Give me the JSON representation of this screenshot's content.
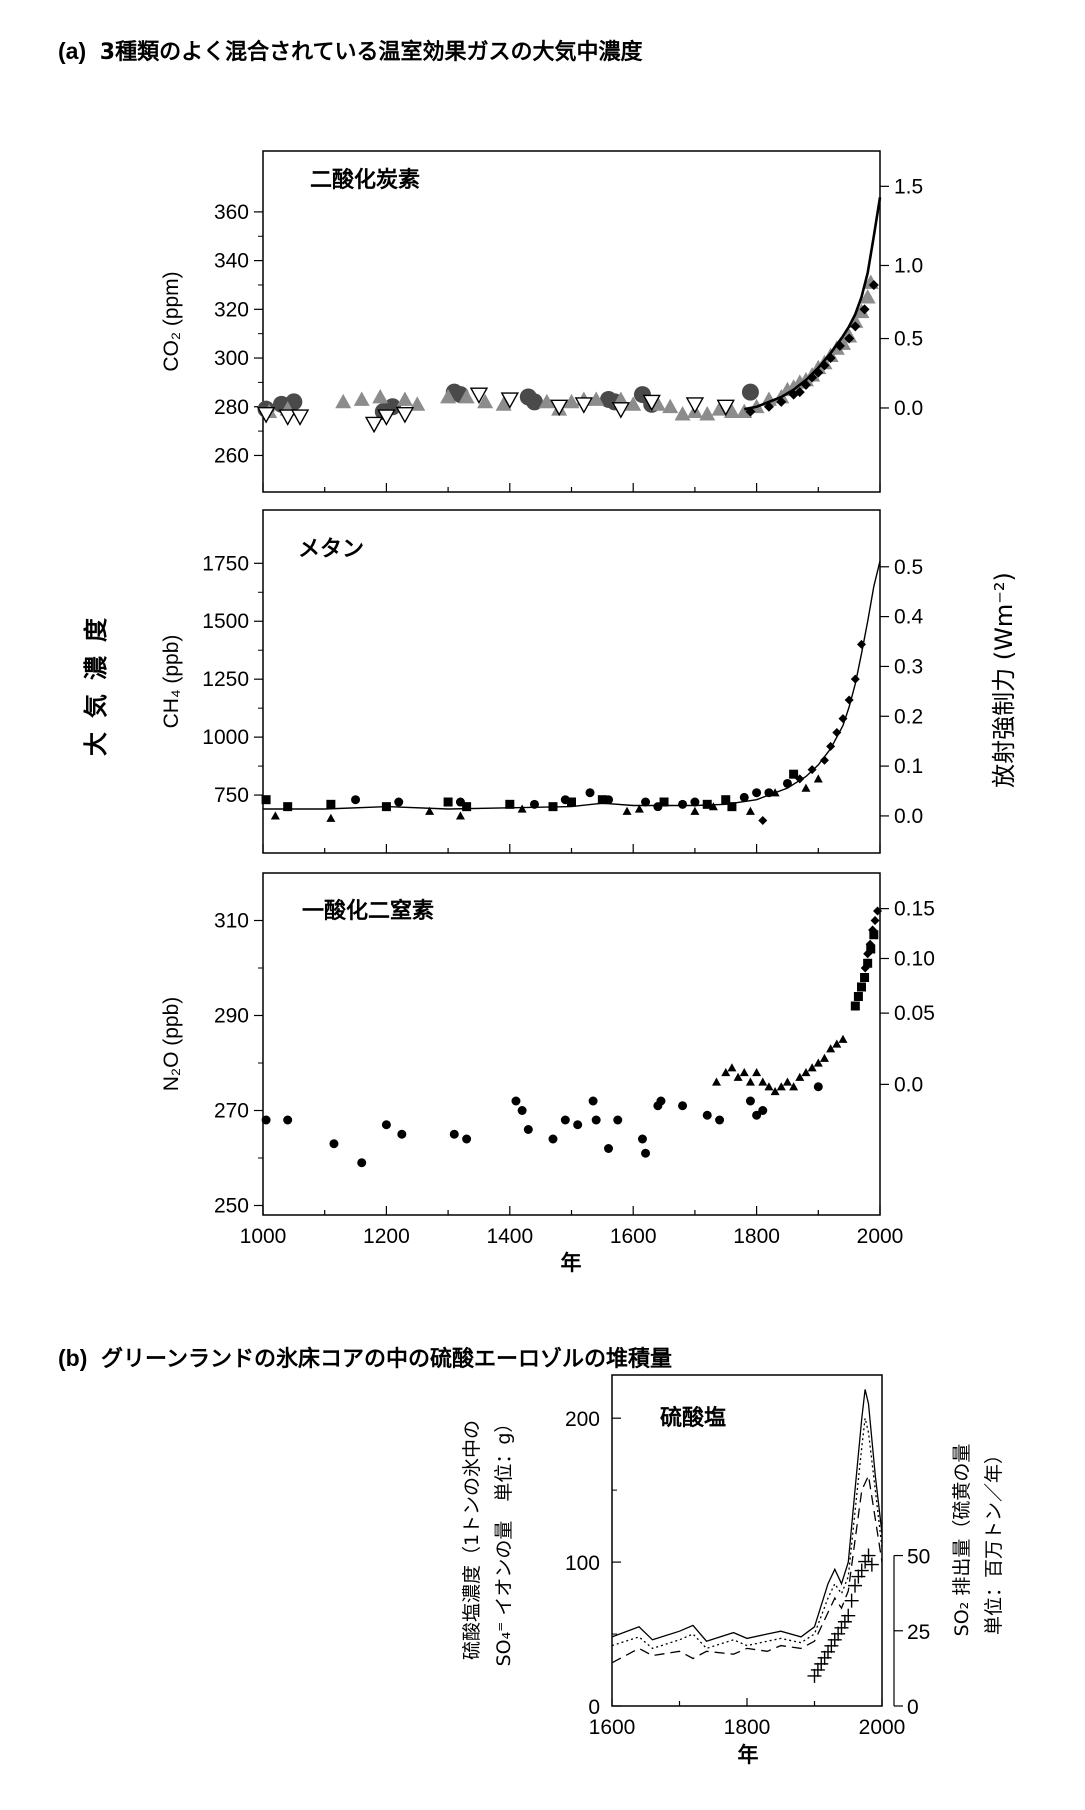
{
  "header_a": {
    "tag": "(a)",
    "text": "3種類のよく混合されている温室効果ガスの大気中濃度"
  },
  "header_b": {
    "tag": "(b)",
    "text": "グリーンランドの氷床コアの中の硫酸エーロゾルの堆積量"
  },
  "left_group_label": "大気濃度",
  "right_group_label": "放射強制力 (Wm⁻²)",
  "shared_xlabel": "年",
  "chart_data": [
    {
      "id": "co2",
      "type": "scatter",
      "title": "二酸化炭素",
      "ylabel": "CO₂ (ppm)",
      "xlim": [
        1000,
        2000
      ],
      "ylim": [
        245,
        385
      ],
      "yticks": [
        260,
        280,
        300,
        320,
        340,
        360
      ],
      "y2label_values": [
        "1.5",
        "1.0",
        "0.5",
        "0.0"
      ],
      "y2ticks_at": [
        370.5,
        338,
        308,
        279.5
      ],
      "colors": {
        "circle": "#4a4a4a",
        "triangle": "#8c8c8c",
        "tri_down": "#000000",
        "diamond": "#000000"
      },
      "series": [
        {
          "marker": "circle",
          "x": [
            1005,
            1030,
            1050,
            1195,
            1210,
            1310,
            1320,
            1430,
            1440,
            1560,
            1570,
            1615,
            1630,
            1790
          ],
          "y": [
            279,
            281,
            282,
            278,
            280,
            286,
            285,
            284,
            282,
            283,
            282,
            285,
            281,
            286
          ]
        },
        {
          "marker": "triangle",
          "x": [
            1010,
            1040,
            1130,
            1160,
            1190,
            1230,
            1250,
            1300,
            1330,
            1360,
            1390,
            1460,
            1480,
            1500,
            1520,
            1540,
            1580,
            1600,
            1640,
            1660,
            1680,
            1700,
            1720,
            1740,
            1760,
            1780,
            1800,
            1820,
            1840,
            1850,
            1860,
            1870,
            1880,
            1890,
            1900,
            1910,
            1920,
            1930,
            1940,
            1950,
            1960,
            1970,
            1980,
            1985
          ],
          "y": [
            278,
            279,
            282,
            283,
            284,
            283,
            281,
            284,
            284,
            282,
            281,
            282,
            279,
            282,
            283,
            283,
            283,
            281,
            281,
            280,
            277,
            278,
            277,
            279,
            278,
            278,
            280,
            283,
            284,
            287,
            288,
            290,
            291,
            293,
            296,
            298,
            301,
            304,
            306,
            309,
            315,
            319,
            325,
            331
          ]
        },
        {
          "marker": "tri_down",
          "x": [
            1005,
            1040,
            1060,
            1180,
            1200,
            1230,
            1350,
            1400,
            1480,
            1520,
            1580,
            1630,
            1700,
            1750
          ],
          "y": [
            277,
            276,
            276,
            273,
            276,
            277,
            285,
            283,
            280,
            281,
            279,
            282,
            281,
            280
          ]
        },
        {
          "marker": "diamond",
          "x": [
            1790,
            1820,
            1840,
            1860,
            1870,
            1880,
            1890,
            1900,
            1910,
            1920,
            1935,
            1950,
            1960,
            1975,
            1990
          ],
          "y": [
            278,
            280,
            282,
            285,
            286,
            289,
            292,
            294,
            297,
            300,
            305,
            308,
            313,
            320,
            330
          ]
        },
        {
          "marker": "line",
          "x": [
            1780,
            1800,
            1820,
            1840,
            1860,
            1880,
            1900,
            1920,
            1940,
            1950,
            1960,
            1970,
            1980,
            1990,
            2000
          ],
          "y": [
            279,
            280,
            282,
            284,
            287,
            291,
            296,
            302,
            309,
            313,
            318,
            325,
            335,
            350,
            366
          ]
        }
      ]
    },
    {
      "id": "ch4",
      "type": "scatter",
      "title": "メタン",
      "ylabel": "CH₄ (ppb)",
      "xlim": [
        1000,
        2000
      ],
      "ylim": [
        500,
        1980
      ],
      "yticks": [
        750,
        1000,
        1250,
        1500,
        1750
      ],
      "y2label_values": [
        "0.5",
        "0.4",
        "0.3",
        "0.2",
        "0.1",
        "0.0"
      ],
      "y2ticks_at": [
        1735,
        1520,
        1305,
        1090,
        875,
        660
      ],
      "series": [
        {
          "marker": "square",
          "x": [
            1005,
            1040,
            1110,
            1200,
            1300,
            1330,
            1400,
            1470,
            1500,
            1550,
            1650,
            1720,
            1750,
            1760,
            1860
          ],
          "y": [
            730,
            700,
            710,
            700,
            720,
            700,
            710,
            700,
            720,
            730,
            720,
            710,
            730,
            700,
            840
          ]
        },
        {
          "marker": "circle",
          "x": [
            1150,
            1220,
            1320,
            1440,
            1490,
            1530,
            1560,
            1620,
            1640,
            1680,
            1700,
            1780,
            1800,
            1820,
            1850
          ],
          "y": [
            730,
            720,
            720,
            710,
            730,
            760,
            730,
            720,
            700,
            710,
            720,
            740,
            760,
            760,
            800
          ]
        },
        {
          "marker": "triangle",
          "x": [
            1020,
            1110,
            1270,
            1320,
            1420,
            1590,
            1610,
            1700,
            1730,
            1790,
            1830,
            1880,
            1900
          ],
          "y": [
            660,
            650,
            680,
            660,
            690,
            680,
            690,
            680,
            700,
            680,
            760,
            780,
            820
          ]
        },
        {
          "marker": "diamond",
          "x": [
            1810,
            1870,
            1890,
            1910,
            1920,
            1930,
            1940,
            1950,
            1960,
            1970
          ],
          "y": [
            640,
            820,
            860,
            900,
            960,
            1020,
            1080,
            1160,
            1250,
            1400
          ]
        },
        {
          "marker": "line",
          "x": [
            1000,
            1100,
            1200,
            1300,
            1400,
            1500,
            1550,
            1600,
            1700,
            1750,
            1800,
            1850,
            1880,
            1900,
            1920,
            1940,
            1950,
            1960,
            1970,
            1980,
            1990,
            2000
          ],
          "y": [
            690,
            690,
            700,
            690,
            695,
            700,
            715,
            705,
            705,
            710,
            730,
            780,
            830,
            880,
            950,
            1050,
            1130,
            1230,
            1360,
            1500,
            1650,
            1760
          ]
        }
      ]
    },
    {
      "id": "n2o",
      "type": "scatter",
      "title": "一酸化二窒素",
      "ylabel": "N₂O (ppb)",
      "xlim": [
        1000,
        2000
      ],
      "ylim": [
        248,
        320
      ],
      "yticks": [
        250,
        270,
        290,
        310
      ],
      "y2label_values": [
        "0.15",
        "0.10",
        "0.05",
        "0.0"
      ],
      "y2ticks_at": [
        312.5,
        302,
        290.5,
        275.5
      ],
      "series": [
        {
          "marker": "circle",
          "x": [
            1005,
            1040,
            1115,
            1160,
            1200,
            1225,
            1310,
            1330,
            1410,
            1420,
            1430,
            1470,
            1490,
            1510,
            1535,
            1540,
            1560,
            1575,
            1615,
            1620,
            1640,
            1645,
            1680,
            1720,
            1740,
            1790,
            1800,
            1810,
            1900
          ],
          "y": [
            268,
            268,
            263,
            259,
            267,
            265,
            265,
            264,
            272,
            270,
            266,
            264,
            268,
            267,
            272,
            268,
            262,
            268,
            264,
            261,
            271,
            272,
            271,
            269,
            268,
            272,
            269,
            270,
            275
          ]
        },
        {
          "marker": "triangle",
          "x": [
            1735,
            1750,
            1760,
            1770,
            1780,
            1790,
            1800,
            1810,
            1820,
            1830,
            1840,
            1850,
            1860,
            1870,
            1880,
            1890,
            1900,
            1910,
            1920,
            1930,
            1940
          ],
          "y": [
            276,
            278,
            279,
            277,
            278,
            276,
            278,
            276,
            275,
            274,
            275,
            276,
            275,
            277,
            278,
            279,
            280,
            281,
            283,
            284,
            285
          ]
        },
        {
          "marker": "square",
          "x": [
            1960,
            1965,
            1970,
            1975,
            1980,
            1985,
            1990
          ],
          "y": [
            292,
            294,
            296,
            298,
            301,
            304,
            307
          ]
        },
        {
          "marker": "diamond",
          "x": [
            1976,
            1980,
            1984,
            1988,
            1992,
            1996
          ],
          "y": [
            300,
            303,
            305,
            308,
            310,
            312
          ]
        }
      ]
    },
    {
      "id": "sulfate",
      "type": "line",
      "title": "硫酸塩",
      "ylabel": "硫酸塩濃度（1トンの氷中の SO₄⁼ イオンの量　単位：g）",
      "ylabel_line1": "硫酸塩濃度（1トンの氷中の",
      "ylabel_line2": "SO₄⁼ イオンの量　単位：g）",
      "y2label_line1": "SO₂ 排出量（硫黄の量",
      "y2label_line2": "単位：百万トン／年）",
      "xlabel": "年",
      "xlim": [
        1600,
        2000
      ],
      "ylim": [
        0,
        230
      ],
      "yticks": [
        0,
        100,
        200
      ],
      "y2ticks": [
        0,
        25,
        50
      ],
      "y2lim": [
        0,
        110
      ],
      "series": [
        {
          "name": "",
          "style": "solid",
          "x": [
            1600,
            1640,
            1660,
            1700,
            1720,
            1740,
            1780,
            1800,
            1830,
            1850,
            1880,
            1900,
            1920,
            1930,
            1940,
            1950,
            1960,
            1970,
            1975,
            1980,
            1990,
            2000
          ],
          "y": [
            48,
            55,
            46,
            52,
            56,
            45,
            51,
            47,
            50,
            52,
            48,
            55,
            85,
            95,
            85,
            100,
            150,
            200,
            220,
            210,
            160,
            120
          ]
        },
        {
          "name": "",
          "style": "dotted",
          "x": [
            1600,
            1640,
            1660,
            1700,
            1720,
            1740,
            1780,
            1800,
            1830,
            1850,
            1880,
            1900,
            1920,
            1930,
            1940,
            1950,
            1960,
            1970,
            1975,
            1980,
            1990,
            2000
          ],
          "y": [
            42,
            48,
            40,
            46,
            50,
            40,
            46,
            42,
            45,
            47,
            44,
            50,
            75,
            85,
            78,
            90,
            135,
            180,
            200,
            190,
            150,
            110
          ]
        },
        {
          "name": "",
          "style": "dashed",
          "x": [
            1600,
            1640,
            1660,
            1700,
            1720,
            1740,
            1780,
            1800,
            1830,
            1850,
            1880,
            1900,
            1920,
            1930,
            1940,
            1950,
            1960,
            1970,
            1980,
            1990,
            2000
          ],
          "y": [
            30,
            40,
            35,
            38,
            33,
            38,
            36,
            40,
            38,
            42,
            40,
            45,
            65,
            75,
            68,
            80,
            115,
            150,
            160,
            130,
            100
          ]
        },
        {
          "name": "",
          "style": "plus",
          "axis": "y2",
          "x": [
            1900,
            1905,
            1910,
            1915,
            1920,
            1925,
            1930,
            1935,
            1940,
            1945,
            1950,
            1955,
            1960,
            1965,
            1970,
            1975,
            1980,
            1985
          ],
          "y": [
            10,
            12,
            14,
            16,
            18,
            20,
            22,
            24,
            26,
            28,
            30,
            35,
            40,
            43,
            45,
            48,
            50,
            47
          ]
        }
      ]
    }
  ]
}
